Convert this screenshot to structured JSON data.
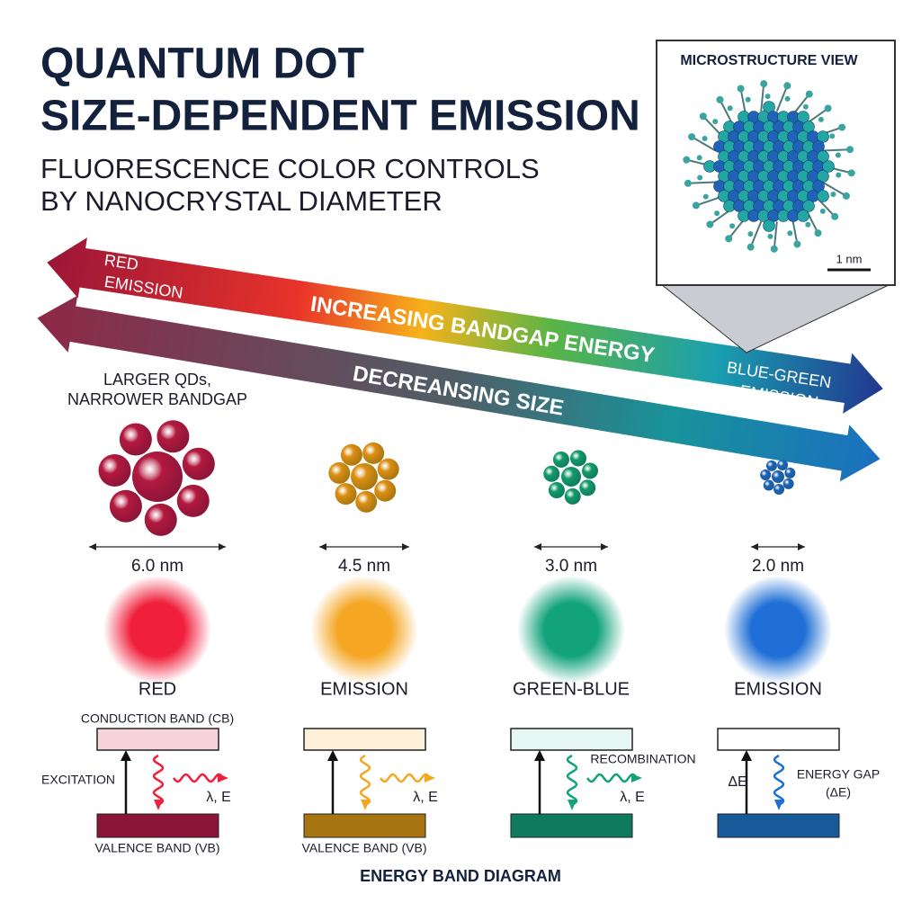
{
  "header": {
    "title": [
      "QUANTUM DOT",
      "SIZE-DEPENDENT EMISSION"
    ],
    "subtitle": [
      "FLUORESCENCE COLOR CONTROLS",
      "BY NANOCRYSTAL DIAMETER"
    ]
  },
  "inset": {
    "title": "MICROSTRUCTURE VIEW",
    "scale": "1 nm"
  },
  "arrows": {
    "energy": {
      "left_label": [
        "RED",
        "EMISSION"
      ],
      "label": "INCREASING BANDGAP ENERGY",
      "right_label": [
        "BLUE-GREEN",
        "EMISSION"
      ]
    },
    "size": {
      "label": "DECREANSING SIZE",
      "note": [
        "LARGER QDs,",
        "NARROWER BANDGAP"
      ]
    }
  },
  "dots": [
    {
      "size": "6.0 nm",
      "emission": "RED",
      "color": "#b3193f",
      "glow": "#f0203c",
      "light": "#f7d3dc",
      "dark": "#8a1538"
    },
    {
      "size": "4.5 nm",
      "emission": "EMISSION",
      "color": "#dc8f12",
      "glow": "#f5a623",
      "light": "#fdf0d8",
      "dark": "#a67512"
    },
    {
      "size": "3.0 nm",
      "emission": "GREEN-BLUE",
      "color": "#139b6a",
      "glow": "#13a37a",
      "light": "#e6f6f2",
      "dark": "#0f7a5e"
    },
    {
      "size": "2.0 nm",
      "emission": "EMISSION",
      "color": "#1e63b5",
      "glow": "#1f6fd6",
      "light": "#ffffff",
      "dark": "#175a9a"
    }
  ],
  "bands": {
    "conduction": "CONDUCTION BAND (CB)",
    "valence": "VALENCE BAND (VB)",
    "excitation": "EXCITATION",
    "photon": "λ, E",
    "recombination": "RECOMBINATION",
    "delta": "ΔE",
    "gap": [
      "ENERGY GAP",
      "(ΔE)"
    ],
    "footer": "ENERGY BAND DIAGRAM"
  }
}
